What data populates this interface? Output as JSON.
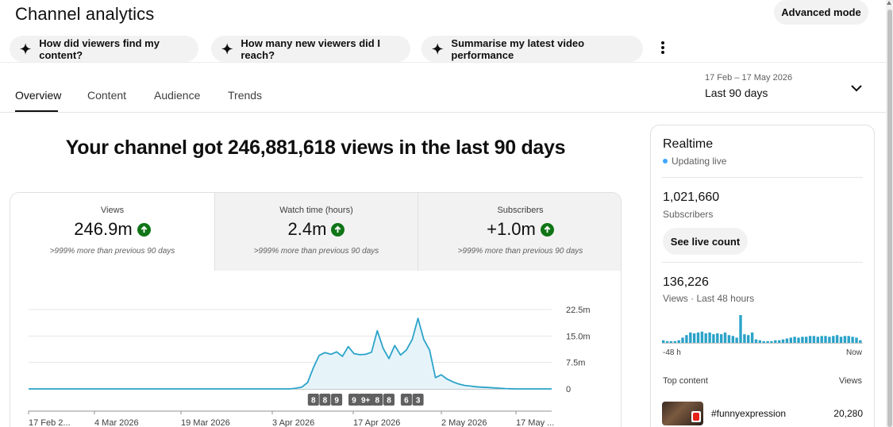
{
  "header": {
    "title": "Channel analytics",
    "advanced_mode_label": "Advanced mode"
  },
  "suggestions": [
    {
      "label": "How did viewers find my content?"
    },
    {
      "label": "How many new viewers did I reach?"
    },
    {
      "label": "Summarise my latest video performance"
    }
  ],
  "tabs": [
    {
      "label": "Overview",
      "active": true
    },
    {
      "label": "Content",
      "active": false
    },
    {
      "label": "Audience",
      "active": false
    },
    {
      "label": "Trends",
      "active": false
    }
  ],
  "date_picker": {
    "range": "17 Feb – 17 May 2026",
    "label": "Last 90 days"
  },
  "headline": "Your channel got 246,881,618 views in the last 90 days",
  "metrics": [
    {
      "label": "Views",
      "value": "246.9m",
      "note": ">999% more than previous 90 days",
      "trend": "up"
    },
    {
      "label": "Watch time (hours)",
      "value": "2.4m",
      "note": ">999% more than previous 90 days",
      "trend": "up"
    },
    {
      "label": "Subscribers",
      "value": "+1.0m",
      "note": ">999% more than previous 90 days",
      "trend": "up"
    }
  ],
  "colors": {
    "line": "#2ba3c9",
    "fill": "#e6f4fa",
    "up_badge": "#107516",
    "live_dot": "#3ea6ff"
  },
  "chart_data": {
    "type": "area",
    "series": [
      {
        "values": [
          0,
          0,
          0,
          0,
          0,
          0,
          0,
          0,
          0,
          0,
          0,
          0,
          0,
          0,
          0,
          0,
          0,
          0,
          0,
          0,
          0,
          0,
          0,
          0,
          0,
          0,
          0,
          0,
          0,
          0,
          0,
          0,
          0,
          0,
          0,
          0,
          0,
          0,
          0,
          0,
          0,
          0,
          0,
          0,
          0,
          0,
          0.2,
          0.5,
          1.8,
          6,
          9.5,
          10.3,
          9.8,
          10.5,
          9.2,
          12,
          10,
          9.7,
          9.8,
          10.4,
          16.5,
          11.5,
          8.6,
          12.3,
          9.6,
          11,
          14,
          20,
          14,
          11,
          3.2,
          4,
          2.8,
          2,
          1.4,
          1,
          0.8,
          0.6,
          0.5,
          0.4,
          0.3,
          0.2,
          0.1,
          0.05,
          0,
          0,
          0,
          0,
          0,
          0,
          0
        ]
      }
    ],
    "x_tick_labels": [
      "17 Feb 2...",
      "4 Mar 2026",
      "19 Mar 2026",
      "3 Apr 2026",
      "17 Apr 2026",
      "2 May 2026",
      "17 May ..."
    ],
    "y_tick_labels": [
      "22.5m",
      "15.0m",
      "7.5m",
      "0"
    ],
    "ylim": [
      0,
      22.5
    ],
    "grid": true,
    "markers": [
      {
        "label": "8",
        "index": 49
      },
      {
        "label": "8",
        "index": 51
      },
      {
        "label": "9",
        "index": 53
      },
      {
        "label": "9",
        "index": 56
      },
      {
        "label": "9+",
        "index": 58
      },
      {
        "label": "8",
        "index": 60
      },
      {
        "label": "8",
        "index": 62
      },
      {
        "label": "6",
        "index": 65
      },
      {
        "label": "3",
        "index": 67
      }
    ]
  },
  "realtime": {
    "title": "Realtime",
    "status": "Updating live",
    "subscribers": "1,021,660",
    "subscribers_label": "Subscribers",
    "live_count_label": "See live count",
    "views": "136,226",
    "views_label": "Views · Last 48 hours",
    "axis_start": "-48 h",
    "axis_end": "Now",
    "bars": [
      3,
      2,
      2,
      2,
      3,
      6,
      9,
      12,
      11,
      12,
      13,
      11,
      12,
      10,
      11,
      10,
      12,
      9,
      8,
      6,
      32,
      10,
      9,
      12,
      4,
      3,
      2,
      2,
      2,
      3,
      3,
      4,
      5,
      6,
      7,
      6,
      7,
      7,
      8,
      8,
      7,
      8,
      8,
      7,
      8,
      9,
      7,
      8,
      8,
      7,
      6,
      3
    ],
    "top_content_label": "Top content",
    "views_col_label": "Views",
    "top_item": {
      "title": "#funnyexpression",
      "views": "20,280"
    }
  }
}
